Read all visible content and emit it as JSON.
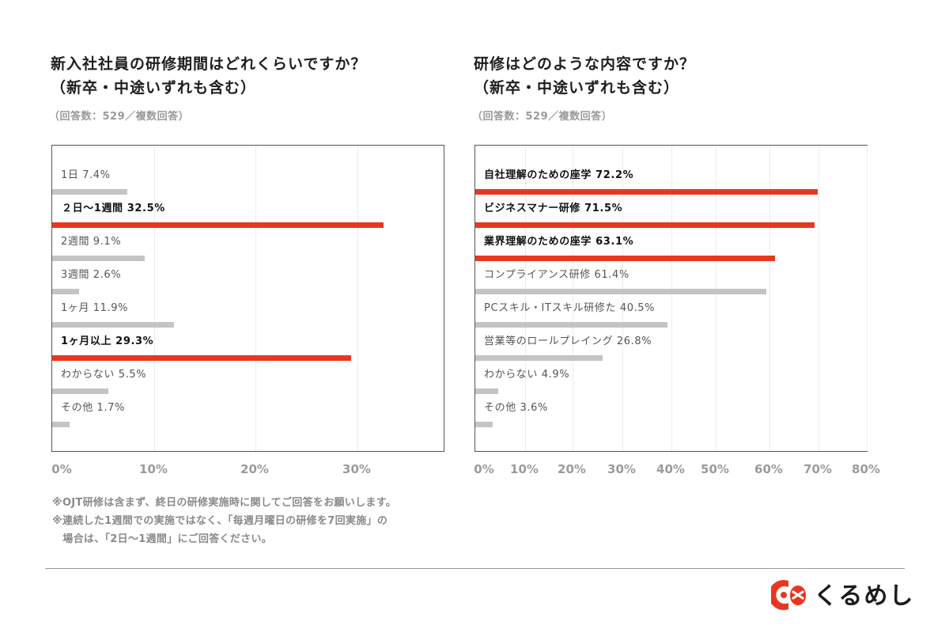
{
  "chart_data": [
    {
      "type": "bar",
      "orientation": "horizontal",
      "title": "新入社社員の研修期間はどれくらいですか？\n（新卒・中途いずれも含む）",
      "title_lines": [
        "新入社社員の研修期間はどれくらいですか？",
        "（新卒・中途いずれも含む）"
      ],
      "subtitle": "（回答数：529／複数回答）",
      "xlim": [
        0,
        37
      ],
      "xticks": [
        "0%",
        "10%",
        "20%",
        "30%"
      ],
      "xtick_values": [
        0,
        10,
        20,
        30
      ],
      "unit": "%",
      "grid": true,
      "categories": [
        "1日",
        "２日〜1週間",
        "2週間",
        "3週間",
        "1ヶ月",
        "1ヶ月以上",
        "わからない",
        "その他"
      ],
      "values": [
        7.4,
        32.5,
        9.1,
        2.6,
        11.9,
        29.3,
        5.5,
        1.7
      ],
      "labels": [
        "1日 7.4%",
        "２日〜1週間 32.5%",
        "2週間 9.1%",
        "3週間 2.6%",
        "1ヶ月 11.9%",
        "1ヶ月以上 29.3%",
        "わからない 5.5%",
        "その他 1.7%"
      ],
      "highlighted": [
        false,
        true,
        false,
        false,
        false,
        true,
        false,
        false
      ],
      "highlight_color": "#e8371f",
      "bar_color": "#c4c4c6"
    },
    {
      "type": "bar",
      "orientation": "horizontal",
      "title": "研修はどのような内容ですか？\n（新卒・中途いずれも含む）",
      "title_lines": [
        "研修はどのような内容ですか？",
        "（新卒・中途いずれも含む）"
      ],
      "subtitle": "（回答数：529／複数回答）",
      "xlim": [
        0,
        80
      ],
      "xticks": [
        "0%",
        "10%",
        "20%",
        "30%",
        "40%",
        "50%",
        "60%",
        "70%",
        "80%"
      ],
      "xtick_values": [
        0,
        10,
        20,
        30,
        40,
        50,
        60,
        70,
        80
      ],
      "unit": "%",
      "grid": true,
      "categories": [
        "自社理解のための座学",
        "ビジネスマナー研修",
        "業界理解のための座学",
        "コンプライアンス研修",
        "PCスキル・ITスキル研修た",
        "営業等のロールプレイング",
        "わからない",
        "その他"
      ],
      "values": [
        72.2,
        71.5,
        63.1,
        61.4,
        40.5,
        26.8,
        4.9,
        3.6
      ],
      "labels": [
        "自社理解のための座学 72.2%",
        "ビジネスマナー研修 71.5%",
        "業界理解のための座学 63.1%",
        "コンプライアンス研修 61.4%",
        "PCスキル・ITスキル研修た 40.5%",
        "営業等のロールプレイング 26.8%",
        "わからない 4.9%",
        "その他 3.6%"
      ],
      "highlighted": [
        true,
        true,
        true,
        false,
        false,
        false,
        false,
        false
      ],
      "highlight_color": "#e8371f",
      "bar_color": "#c4c4c6"
    }
  ],
  "notes": [
    "※OJT研修は含まず、終日の研修実施時に関してご回答をお願いします。",
    "※連続した1週間での実施ではなく、「毎週月曜日の研修を7回実施」の",
    "　場合は、「2日〜1週間」にご回答ください。"
  ],
  "logo": {
    "text": "くるめし",
    "icon": "kurumeshi-logo-icon",
    "color": "#e8371f"
  }
}
